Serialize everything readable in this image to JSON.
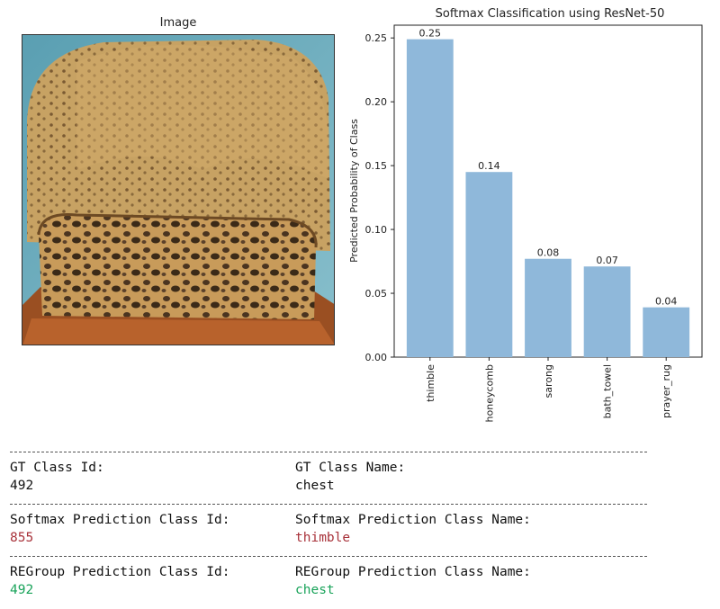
{
  "image_panel": {
    "title": "Image"
  },
  "chart_data": {
    "type": "bar",
    "title": "Softmax Classification using ResNet-50",
    "xlabel": "",
    "ylabel": "Predicted Probability of Class",
    "categories": [
      "thimble",
      "honeycomb",
      "sarong",
      "bath_towel",
      "prayer_rug"
    ],
    "values": [
      0.249,
      0.145,
      0.077,
      0.071,
      0.039
    ],
    "data_labels": [
      "0.25",
      "0.14",
      "0.08",
      "0.07",
      "0.04"
    ],
    "yticks": [
      "0.00",
      "0.05",
      "0.10",
      "0.15",
      "0.20",
      "0.25"
    ],
    "ylim": [
      0,
      0.26
    ],
    "bar_color": "#8fb8da",
    "grid": false
  },
  "report": {
    "gt_id_label": "GT Class Id:",
    "gt_id_value": "492",
    "gt_name_label": "GT Class Name:",
    "gt_name_value": "chest",
    "softmax_id_label": "Softmax Prediction Class Id:",
    "softmax_id_value": "855",
    "softmax_name_label": "Softmax Prediction Class Name:",
    "softmax_name_value": "thimble",
    "regroup_id_label": "REGroup Prediction Class Id:",
    "regroup_id_value": "492",
    "regroup_name_label": "REGroup Prediction Class Name:",
    "regroup_name_value": "chest",
    "colors": {
      "wrong": "#a8323a",
      "correct": "#19a35a"
    }
  }
}
